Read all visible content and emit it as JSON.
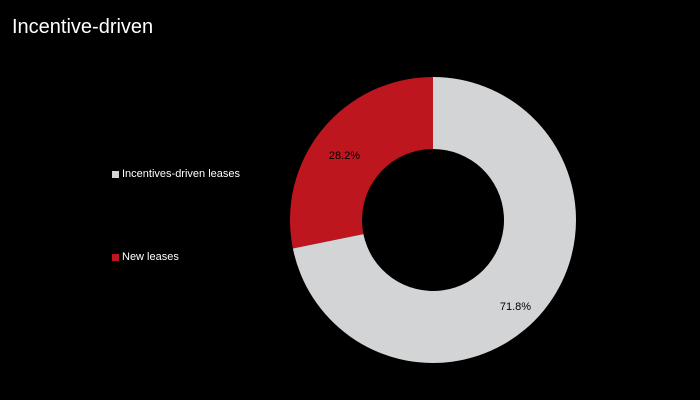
{
  "chart_data": {
    "type": "pie",
    "title": "Incentive-driven",
    "donut": true,
    "legend_position": "left",
    "slices": [
      {
        "label": "New leases",
        "value": 28.2,
        "value_label": "28.2%",
        "color": "#be161e"
      },
      {
        "label": "Incentives-driven leases",
        "value": 71.8,
        "value_label": "71.8%",
        "color": "#d3d4d5"
      }
    ],
    "legend_order": [
      1,
      0
    ]
  }
}
